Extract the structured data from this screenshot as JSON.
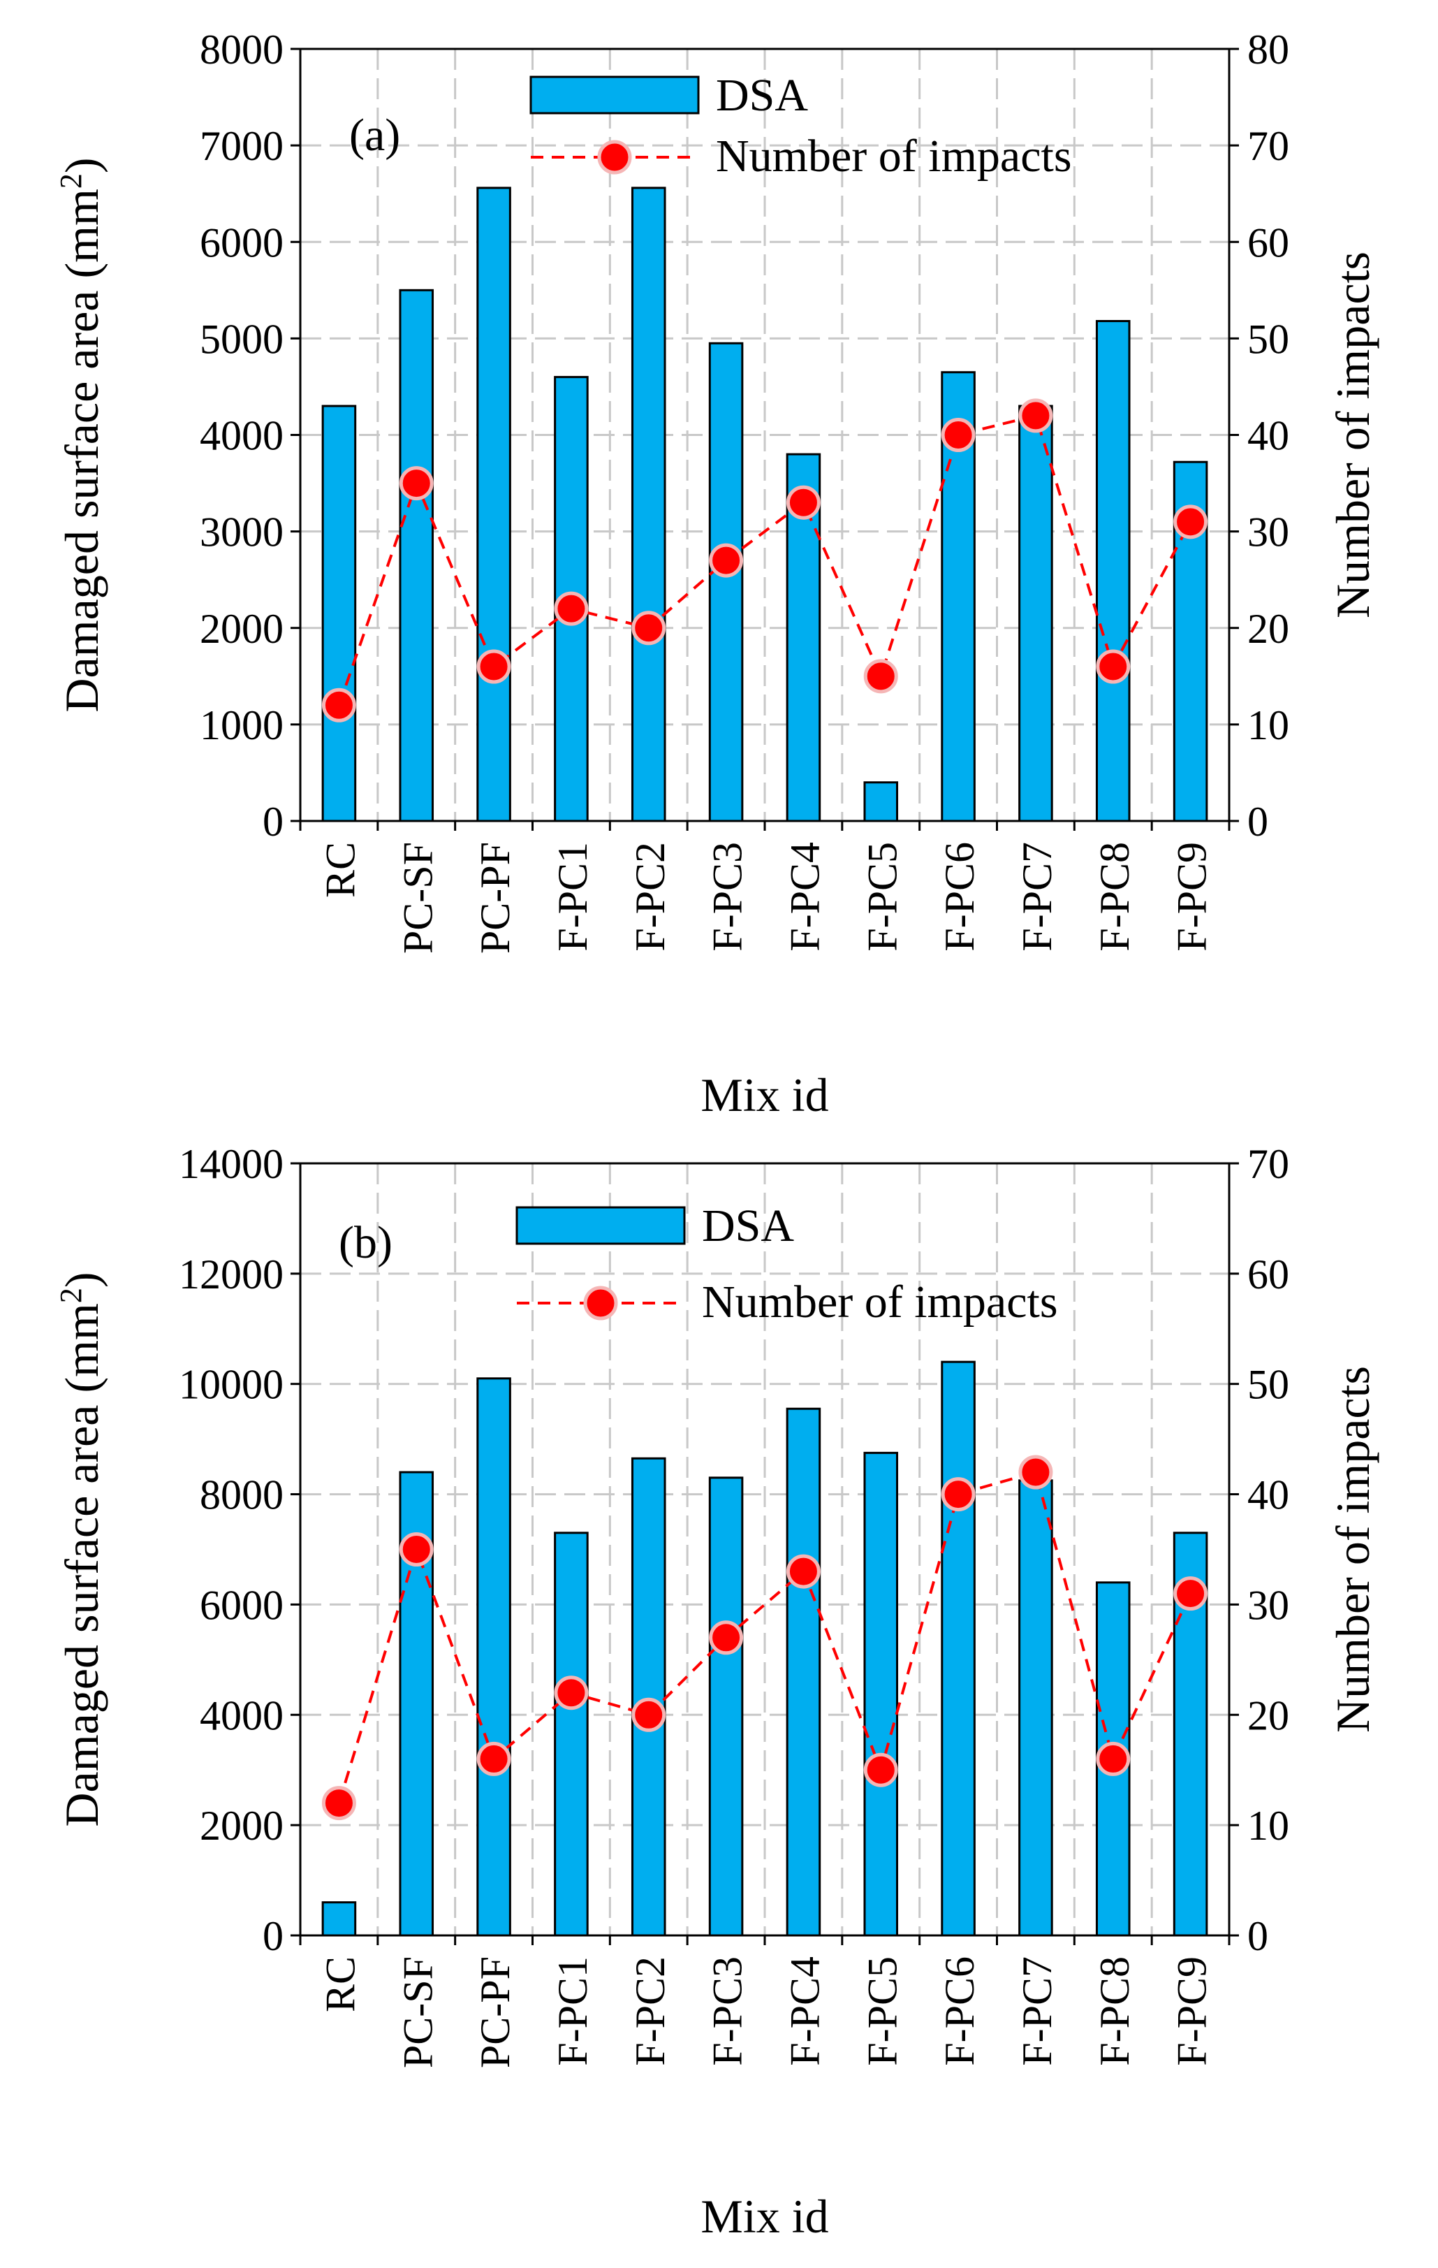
{
  "figure": {
    "x_title": "Mix id",
    "y_left_title": "Damaged surface area (mm2)",
    "y_left_title_base": "Damaged surface area (mm",
    "y_left_title_sup": "2",
    "y_left_title_end": ")",
    "y_right_title": "Number of impacts",
    "legend_bar": "DSA",
    "legend_line": "Number of impacts"
  },
  "colors": {
    "bar_fill": "#00aeef",
    "line": "#ff0000",
    "marker": "#ff0000"
  },
  "chart_data": [
    {
      "type": "bar",
      "panel_label": "(a)",
      "title": "",
      "xlabel": "Mix id",
      "ylabel": "Damaged surface area (mm2)",
      "y2label": "Number of impacts",
      "categories": [
        "RC",
        "PC-SF",
        "PC-PF",
        "F-PC1",
        "F-PC2",
        "F-PC3",
        "F-PC4",
        "F-PC5",
        "F-PC6",
        "F-PC7",
        "F-PC8",
        "F-PC9"
      ],
      "ylim": [
        0,
        8000
      ],
      "yticks": [
        0,
        1000,
        2000,
        3000,
        4000,
        5000,
        6000,
        7000,
        8000
      ],
      "y2lim": [
        0,
        80
      ],
      "y2ticks": [
        0,
        10,
        20,
        30,
        40,
        50,
        60,
        70,
        80
      ],
      "grid": true,
      "legend_position": "top-right",
      "series": [
        {
          "name": "DSA",
          "type": "bar",
          "axis": "left",
          "values": [
            4300,
            5500,
            6560,
            4600,
            6560,
            4950,
            3800,
            400,
            4650,
            4300,
            5180,
            3720
          ]
        },
        {
          "name": "Number of impacts",
          "type": "line",
          "axis": "right",
          "values": [
            12,
            35,
            16,
            22,
            20,
            27,
            33,
            15,
            40,
            42,
            16,
            31
          ]
        }
      ]
    },
    {
      "type": "bar",
      "panel_label": "(b)",
      "title": "",
      "xlabel": "Mix id",
      "ylabel": "Damaged surface area (mm2)",
      "y2label": "Number of impacts",
      "categories": [
        "RC",
        "PC-SF",
        "PC-PF",
        "F-PC1",
        "F-PC2",
        "F-PC3",
        "F-PC4",
        "F-PC5",
        "F-PC6",
        "F-PC7",
        "F-PC8",
        "F-PC9"
      ],
      "ylim": [
        0,
        14000
      ],
      "yticks": [
        0,
        2000,
        4000,
        6000,
        8000,
        10000,
        12000,
        14000
      ],
      "y2lim": [
        0,
        70
      ],
      "y2ticks": [
        0,
        10,
        20,
        30,
        40,
        50,
        60,
        70
      ],
      "grid": true,
      "legend_position": "top-right",
      "series": [
        {
          "name": "DSA",
          "type": "bar",
          "axis": "left",
          "values": [
            600,
            8400,
            10100,
            7300,
            8650,
            8300,
            9550,
            8750,
            10400,
            8250,
            6400,
            7300
          ]
        },
        {
          "name": "Number of impacts",
          "type": "line",
          "axis": "right",
          "values": [
            12,
            35,
            16,
            22,
            20,
            27,
            33,
            15,
            40,
            42,
            16,
            31
          ]
        }
      ]
    }
  ]
}
